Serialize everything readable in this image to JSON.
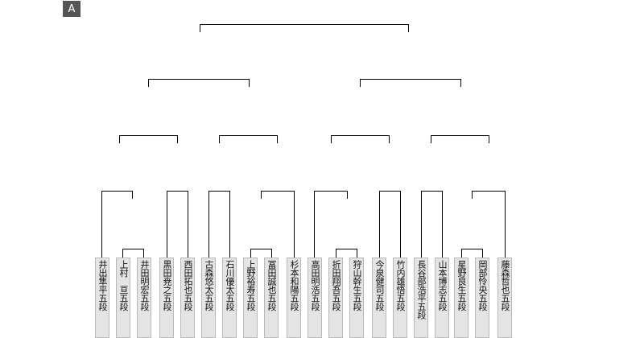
{
  "block_label": "A",
  "players": [
    {
      "name": "井出隼平五段"
    },
    {
      "name": "上村　亘五段"
    },
    {
      "name": "井田明宏五段"
    },
    {
      "name": "黒田尭之五段"
    },
    {
      "name": "西田拓也五段"
    },
    {
      "name": "古森悠太五段"
    },
    {
      "name": "石川優太五段"
    },
    {
      "name": "上野裕寿五段"
    },
    {
      "name": "冨田誠也五段"
    },
    {
      "name": "杉本和陽五段"
    },
    {
      "name": "高田明浩五段"
    },
    {
      "name": "折田翔吾五段"
    },
    {
      "name": "狩山幹生五段"
    },
    {
      "name": "今泉健司五段"
    },
    {
      "name": "竹内雄悟五段"
    },
    {
      "name": "長谷部浩平五段"
    },
    {
      "name": "山本博志五段"
    },
    {
      "name": "星野良生五段"
    },
    {
      "name": "岡部怜央五段"
    },
    {
      "name": "藤森哲也五段"
    }
  ],
  "colors": {
    "line": "#000000",
    "slot_fill": "#e4e4e4",
    "slot_border": "#b9b9b9",
    "badge": "#555555"
  }
}
